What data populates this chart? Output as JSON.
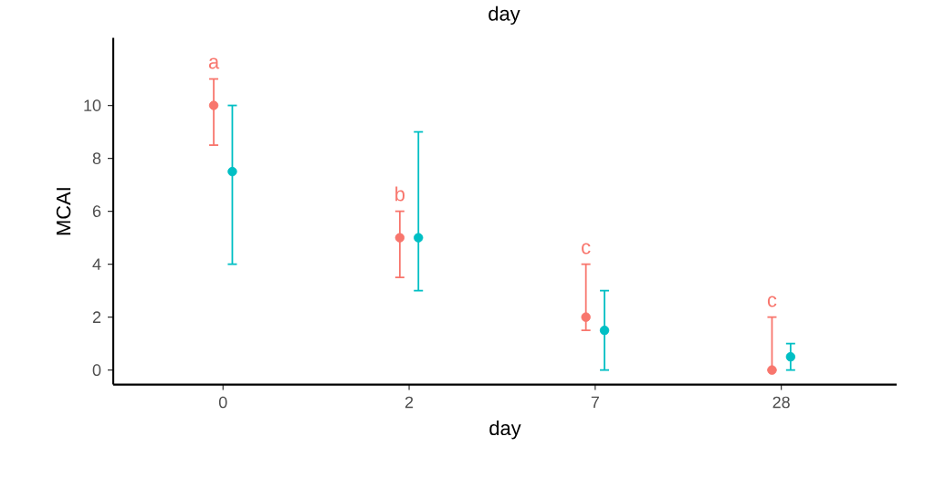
{
  "chart_data": {
    "type": "scatter",
    "title": "day",
    "xlabel": "day",
    "ylabel": "MCAI",
    "categories": [
      "0",
      "2",
      "7",
      "28"
    ],
    "series": [
      {
        "color": "#f8766d",
        "values": [
          10,
          5,
          2,
          0
        ],
        "errors": [
          [
            8.5,
            11
          ],
          [
            3.5,
            6
          ],
          [
            1.5,
            4
          ],
          [
            0,
            2
          ]
        ]
      },
      {
        "color": "#00bfc4",
        "values": [
          7.5,
          5,
          1.5,
          0.5
        ],
        "errors": [
          [
            4,
            10
          ],
          [
            3,
            9
          ],
          [
            0,
            3
          ],
          [
            0,
            1
          ]
        ]
      }
    ],
    "annotations": [
      "a",
      "b",
      "c",
      "c"
    ],
    "ylim": [
      -0.55,
      12.55
    ],
    "yticks": [
      0,
      2,
      4,
      6,
      8,
      10
    ],
    "marker": "circle"
  }
}
